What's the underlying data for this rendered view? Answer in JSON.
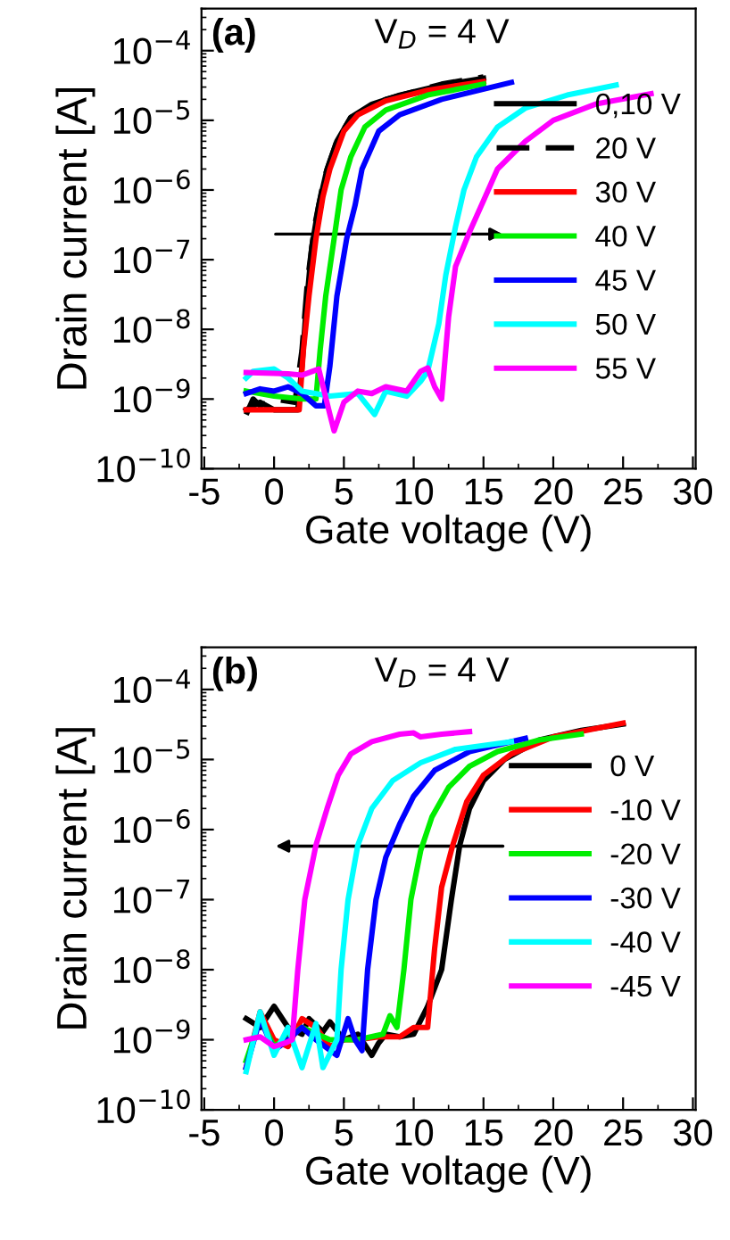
{
  "chart_data": [
    {
      "type": "line",
      "xlabel": "Gate voltage (V)",
      "ylabel": "Drain current [A]",
      "annotations": [
        "(a)",
        "V$_{D}$ = 4 V"
      ],
      "log": "y",
      "xlim": [
        -5.2,
        30.2
      ],
      "xticks": [
        -5,
        0,
        5,
        10,
        15,
        20,
        25,
        30
      ],
      "ylim": [
        1e-10,
        0.0004
      ],
      "yticks": [
        {
          "value": 1e-10,
          "label": "10$^{−10}$"
        },
        {
          "value": 1e-09,
          "label": "10$^{−9}$"
        },
        {
          "value": 1e-08,
          "label": "10$^{−8}$"
        },
        {
          "value": 1e-07,
          "label": "10$^{−7}$"
        },
        {
          "value": 1e-06,
          "label": "10$^{−6}$"
        },
        {
          "value": 1e-05,
          "label": "10$^{−5}$"
        },
        {
          "value": 0.0001,
          "label": "10$^{−4}$"
        }
      ],
      "grid": false,
      "legend": "right",
      "marker": "none",
      "series": [
        {
          "name": "0,10 V",
          "color": "#000000",
          "x": [
            -2,
            -1,
            0,
            1.7,
            2.0,
            2.3,
            2.7,
            3.2,
            3.8,
            4.5,
            5.5,
            7,
            9,
            12,
            15
          ],
          "values": [
            7e-10,
            9e-10,
            7e-10,
            7e-10,
            3e-09,
            2e-08,
            1.5e-07,
            6e-07,
            2e-06,
            5e-06,
            1.1e-05,
            1.7e-05,
            2.3e-05,
            3.2e-05,
            4e-05
          ]
        },
        {
          "name": "20 V",
          "color": "#000000",
          "line_style": "dashed",
          "x": [
            -2,
            -1.5,
            -1,
            0,
            1.5,
            2,
            2.4,
            2.9,
            3.6,
            4.5,
            5.5,
            8,
            12,
            15
          ],
          "values": [
            6e-10,
            1e-09,
            8e-10,
            1e-09,
            9e-10,
            5e-09,
            5e-08,
            3e-07,
            1.5e-06,
            5e-06,
            1.1e-05,
            2e-05,
            3.3e-05,
            4.2e-05
          ]
        },
        {
          "name": "30 V",
          "color": "#ff0000",
          "x": [
            -2,
            1.8,
            2.1,
            2.5,
            3,
            3.5,
            4,
            5,
            6,
            8,
            11,
            15
          ],
          "values": [
            7e-10,
            7e-10,
            5e-09,
            3e-08,
            2e-07,
            8e-07,
            2e-06,
            7e-06,
            1.2e-05,
            1.9e-05,
            2.7e-05,
            3.6e-05
          ]
        },
        {
          "name": "40 V",
          "color": "#00ee00",
          "x": [
            -2,
            0,
            2,
            3,
            3.3,
            3.7,
            4.3,
            4.8,
            5.5,
            6.5,
            8,
            11,
            15
          ],
          "values": [
            1.3e-09,
            1.1e-09,
            1e-09,
            1e-09,
            5e-09,
            3e-08,
            2e-07,
            1e-06,
            3e-06,
            8e-06,
            1.4e-05,
            2.3e-05,
            3.3e-05
          ]
        },
        {
          "name": "45 V",
          "color": "#0000ff",
          "x": [
            -2,
            -1,
            0,
            1,
            2,
            3,
            3.6,
            4,
            4.5,
            5.2,
            5.8,
            6.3,
            7.5,
            9,
            12,
            17
          ],
          "values": [
            1.2e-09,
            1.4e-09,
            1.3e-09,
            1.5e-09,
            1.2e-09,
            8e-10,
            8e-10,
            3e-09,
            3e-08,
            2e-07,
            6e-07,
            2e-06,
            7e-06,
            1.2e-05,
            2e-05,
            3.5e-05
          ]
        },
        {
          "name": "50 V",
          "color": "#00ffff",
          "x": [
            -2,
            -1.5,
            0,
            1,
            2,
            4,
            6,
            7.2,
            8,
            9.5,
            10.5,
            11,
            11.8,
            12.3,
            13,
            13.6,
            14.5,
            16,
            18,
            21,
            24.5
          ],
          "values": [
            2e-09,
            2.5e-09,
            2.7e-09,
            2e-09,
            1.3e-09,
            1.1e-09,
            1.2e-09,
            6e-10,
            1.3e-09,
            1.1e-09,
            1.8e-09,
            2.5e-09,
            1.2e-08,
            6e-08,
            3e-07,
            1e-06,
            3e-06,
            8e-06,
            1.5e-05,
            2.3e-05,
            3.2e-05
          ]
        },
        {
          "name": "55 V",
          "color": "#ff00ff",
          "x": [
            -2,
            1,
            2,
            3.2,
            4,
            4.3,
            5,
            6,
            7,
            8,
            9.5,
            10.5,
            11,
            11.5,
            12,
            12.5,
            13,
            14,
            15,
            16,
            18,
            20,
            23,
            27
          ],
          "values": [
            2.4e-09,
            2.3e-09,
            2.2e-09,
            2.7e-09,
            6e-10,
            3.5e-10,
            9e-10,
            1.3e-09,
            1.2e-09,
            1.5e-09,
            1.3e-09,
            2.5e-09,
            2.8e-09,
            1.5e-09,
            1e-09,
            1.5e-08,
            8e-08,
            2.5e-07,
            7e-07,
            2e-06,
            5e-06,
            1e-05,
            1.7e-05,
            2.4e-05
          ]
        }
      ]
    },
    {
      "type": "line",
      "xlabel": "Gate voltage (V)",
      "ylabel": "Drain current [A]",
      "annotations": [
        "(b)",
        "V$_{D}$ = 4 V"
      ],
      "log": "y",
      "xlim": [
        -5.2,
        30.2
      ],
      "xticks": [
        -5,
        0,
        5,
        10,
        15,
        20,
        25,
        30
      ],
      "ylim": [
        1e-10,
        0.0004
      ],
      "yticks": [
        {
          "value": 1e-10,
          "label": "10$^{−10}$"
        },
        {
          "value": 1e-09,
          "label": "10$^{−9}$"
        },
        {
          "value": 1e-08,
          "label": "10$^{−8}$"
        },
        {
          "value": 1e-07,
          "label": "10$^{−7}$"
        },
        {
          "value": 1e-06,
          "label": "10$^{−6}$"
        },
        {
          "value": 1e-05,
          "label": "10$^{−5}$"
        },
        {
          "value": 0.0001,
          "label": "10$^{−4}$"
        }
      ],
      "grid": false,
      "legend": "right",
      "marker": "none",
      "series": [
        {
          "name": "0 V",
          "color": "#000000",
          "x": [
            -2,
            -1,
            0,
            1,
            2,
            2.5,
            3.5,
            4,
            5,
            6,
            7,
            7.5,
            8,
            9,
            10,
            11,
            12,
            12.7,
            13.3,
            14,
            15,
            16.5,
            19,
            22,
            25
          ],
          "values": [
            2e-09,
            1.5e-09,
            3e-09,
            1.5e-09,
            1.2e-09,
            2e-09,
            1.3e-09,
            1.8e-09,
            1e-09,
            1.2e-09,
            6e-10,
            9e-10,
            1.2e-09,
            1.1e-09,
            1.2e-09,
            3e-09,
            1e-08,
            1e-07,
            6e-07,
            2e-06,
            5e-06,
            1e-05,
            1.9e-05,
            2.6e-05,
            3.2e-05
          ]
        },
        {
          "name": "-10 V",
          "color": "#ff0000",
          "x": [
            -2,
            -1,
            0,
            1,
            2,
            3,
            4,
            5,
            6,
            7.5,
            9,
            10,
            11,
            11.5,
            12,
            12.8,
            13.8,
            15,
            17,
            20,
            25
          ],
          "values": [
            4e-10,
            2.5e-09,
            1e-09,
            8e-10,
            2e-09,
            1.5e-09,
            8e-10,
            1e-09,
            1e-09,
            1.1e-09,
            1.1e-09,
            1.5e-09,
            1.5e-09,
            2e-08,
            1.5e-07,
            6e-07,
            2.5e-06,
            6e-06,
            1.2e-05,
            2.1e-05,
            3.3e-05
          ]
        },
        {
          "name": "-20 V",
          "color": "#00ee00",
          "x": [
            -2,
            -1,
            0,
            2,
            4,
            6,
            7.8,
            8.3,
            8.8,
            9.3,
            9.8,
            10.5,
            11.3,
            12.5,
            14,
            16,
            19,
            22
          ],
          "values": [
            5e-10,
            2e-09,
            8e-10,
            1.5e-09,
            1e-09,
            1e-09,
            1.2e-09,
            2.2e-09,
            1.5e-09,
            1e-08,
            1e-07,
            5e-07,
            1.5e-06,
            4e-06,
            8e-06,
            1.3e-05,
            1.9e-05,
            2.3e-05
          ]
        },
        {
          "name": "-30 V",
          "color": "#0000ff",
          "x": [
            -2,
            -1,
            0,
            1,
            2,
            3,
            4.5,
            5.3,
            5.8,
            6.3,
            6.7,
            7.3,
            8,
            9,
            10,
            11.5,
            14,
            18
          ],
          "values": [
            4e-10,
            2e-09,
            7e-10,
            1e-09,
            1.5e-09,
            1e-09,
            6e-10,
            2e-09,
            1e-09,
            7e-10,
            1e-08,
            1e-07,
            4e-07,
            1.2e-06,
            3e-06,
            7e-06,
            1.3e-05,
            2e-05
          ]
        },
        {
          "name": "-40 V",
          "color": "#00ffff",
          "x": [
            -2,
            -1,
            0,
            1,
            2,
            3,
            3.5,
            4.5,
            4.8,
            5.3,
            6,
            7,
            8.5,
            10.5,
            13,
            17
          ],
          "values": [
            3.5e-10,
            2.5e-09,
            6e-10,
            1.5e-09,
            4e-10,
            1.7e-09,
            4e-10,
            1e-09,
            1e-08,
            1e-07,
            6e-07,
            2e-06,
            5e-06,
            9e-06,
            1.4e-05,
            1.8e-05
          ]
        },
        {
          "name": "-45 V",
          "color": "#ff00ff",
          "x": [
            -2,
            -1,
            0,
            0.8,
            1.3,
            1.7,
            2.2,
            3,
            3.8,
            4.6,
            5.5,
            7,
            9,
            10,
            10.5,
            12,
            14
          ],
          "values": [
            1e-09,
            1.1e-09,
            8e-10,
            9e-10,
            1e-09,
            1e-08,
            1e-07,
            6e-07,
            2e-06,
            6e-06,
            1.2e-05,
            1.8e-05,
            2.3e-05,
            2.4e-05,
            2.1e-05,
            2.3e-05,
            2.5e-05
          ]
        }
      ]
    }
  ]
}
